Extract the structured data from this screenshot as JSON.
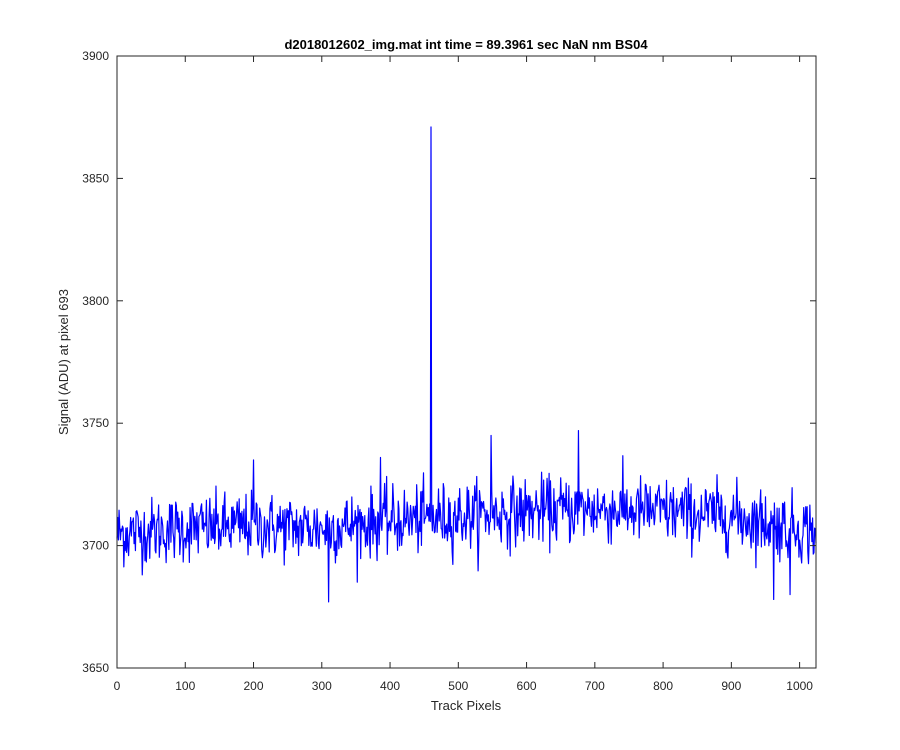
{
  "chart_data": {
    "type": "line",
    "title": "d2018012602_img.mat int time = 89.3961 sec  NaN nm BS04",
    "xlabel": "Track Pixels",
    "ylabel": "Signal (ADU) at pixel 693",
    "xlim": [
      0,
      1024
    ],
    "ylim": [
      3650,
      3900
    ],
    "xticks": [
      0,
      100,
      200,
      300,
      400,
      500,
      600,
      700,
      800,
      900,
      1000
    ],
    "yticks": [
      3650,
      3700,
      3750,
      3800,
      3850,
      3900
    ],
    "grid": false,
    "legend": "none",
    "series": [
      {
        "color": "#0000ff",
        "baseline": [
          [
            0,
            3705
          ],
          [
            100,
            3707
          ],
          [
            200,
            3708
          ],
          [
            300,
            3707
          ],
          [
            400,
            3710
          ],
          [
            500,
            3712
          ],
          [
            600,
            3714
          ],
          [
            700,
            3715
          ],
          [
            800,
            3714
          ],
          [
            900,
            3712
          ],
          [
            1000,
            3707
          ],
          [
            1024,
            3706
          ]
        ],
        "noise_amplitude": 9,
        "noise_range": [
          3677,
          3747
        ],
        "points": [
          [
            460,
            3871
          ],
          [
            676,
            3747
          ],
          [
            548,
            3745
          ],
          [
            962,
            3678
          ],
          [
            310,
            3677
          ],
          [
            986,
            3680
          ],
          [
            200,
            3735
          ],
          [
            386,
            3736
          ]
        ]
      }
    ]
  }
}
